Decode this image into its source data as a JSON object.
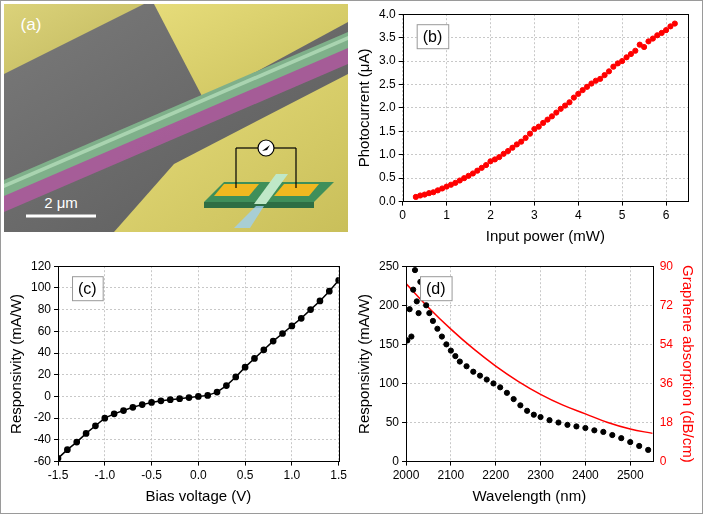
{
  "panel_a": {
    "label": "(a)",
    "scale_bar": "2 μm"
  },
  "chart_data": [
    {
      "type": "scatter",
      "annotation": "(b)",
      "x_label": "Input power (mW)",
      "y_label": "Photocurrent (μA)",
      "color": "#ff0000",
      "marker": "circle",
      "x": [
        0.3,
        0.4,
        0.5,
        0.6,
        0.7,
        0.8,
        0.9,
        1.0,
        1.1,
        1.2,
        1.3,
        1.4,
        1.5,
        1.6,
        1.7,
        1.8,
        1.9,
        2.0,
        2.1,
        2.2,
        2.3,
        2.4,
        2.5,
        2.6,
        2.7,
        2.8,
        2.9,
        3.0,
        3.1,
        3.2,
        3.3,
        3.4,
        3.5,
        3.6,
        3.7,
        3.8,
        3.9,
        4.0,
        4.1,
        4.2,
        4.3,
        4.4,
        4.5,
        4.6,
        4.7,
        4.8,
        4.9,
        5.0,
        5.1,
        5.2,
        5.3,
        5.4,
        5.5,
        5.6,
        5.7,
        5.8,
        5.9,
        6.0,
        6.1,
        6.2
      ],
      "values": [
        0.1,
        0.13,
        0.15,
        0.18,
        0.2,
        0.24,
        0.28,
        0.32,
        0.36,
        0.4,
        0.45,
        0.5,
        0.55,
        0.6,
        0.66,
        0.72,
        0.78,
        0.86,
        0.9,
        0.95,
        1.02,
        1.08,
        1.15,
        1.22,
        1.28,
        1.36,
        1.45,
        1.55,
        1.6,
        1.68,
        1.75,
        1.82,
        1.9,
        1.98,
        2.05,
        2.12,
        2.22,
        2.3,
        2.38,
        2.45,
        2.52,
        2.58,
        2.62,
        2.7,
        2.78,
        2.88,
        2.95,
        3.0,
        3.08,
        3.15,
        3.22,
        3.35,
        3.3,
        3.42,
        3.48,
        3.55,
        3.6,
        3.66,
        3.74,
        3.8
      ],
      "xlim": [
        0,
        6.5
      ],
      "xticks": [
        0,
        1,
        2,
        3,
        4,
        5,
        6
      ],
      "ylim": [
        0,
        4
      ],
      "yticks": [
        {
          "value": 0,
          "label": "0.0"
        },
        0.5,
        {
          "value": 1,
          "label": "1.0"
        },
        1.5,
        {
          "value": 2,
          "label": "2.0"
        },
        2.5,
        {
          "value": 3,
          "label": "3.0"
        },
        3.5,
        {
          "value": 4,
          "label": "4.0"
        }
      ],
      "grid": true
    },
    {
      "type": "line",
      "annotation": "(c)",
      "x_label": "Bias voltage (V)",
      "y_label": "Responsivity (mA/W)",
      "color": "#000000",
      "marker": "circle",
      "line_style": "solid",
      "x": [
        -1.5,
        -1.4,
        -1.3,
        -1.2,
        -1.1,
        -1.0,
        -0.9,
        -0.8,
        -0.7,
        -0.6,
        -0.5,
        -0.4,
        -0.3,
        -0.2,
        -0.1,
        0.0,
        0.1,
        0.2,
        0.3,
        0.4,
        0.5,
        0.6,
        0.7,
        0.8,
        0.9,
        1.0,
        1.1,
        1.2,
        1.3,
        1.4,
        1.5
      ],
      "values": [
        -57,
        -49,
        -42,
        -34,
        -27,
        -20,
        -16,
        -13,
        -10,
        -7.5,
        -5.5,
        -4,
        -3,
        -2,
        -1,
        0,
        1,
        4,
        10,
        18,
        27,
        35,
        43,
        51,
        58,
        65,
        72,
        80,
        88,
        97,
        107
      ],
      "xlim": [
        -1.5,
        1.5
      ],
      "xticks": [
        -1.5,
        {
          "value": -1,
          "label": "-1.0"
        },
        -0.5,
        {
          "value": 0,
          "label": "0.0"
        },
        0.5,
        {
          "value": 1,
          "label": "1.0"
        },
        1.5
      ],
      "ylim": [
        -60,
        120
      ],
      "yticks": [
        -60,
        -40,
        -20,
        0,
        20,
        40,
        60,
        80,
        100,
        120
      ],
      "grid": true
    },
    {
      "type": "scatter",
      "annotation": "(d)",
      "x_label": "Wavelength (nm)",
      "y_label": "Responsivity (mA/W)",
      "y2_label": "Graphene absorption (dB/cm)",
      "series": [
        {
          "type": "scatter",
          "color": "#000000",
          "marker": "circle",
          "x": [
            2003,
            2008,
            2012,
            2016,
            2020,
            2024,
            2028,
            2032,
            2038,
            2045,
            2052,
            2060,
            2070,
            2080,
            2090,
            2100,
            2110,
            2120,
            2135,
            2150,
            2165,
            2180,
            2195,
            2210,
            2225,
            2240,
            2255,
            2270,
            2285,
            2300,
            2320,
            2340,
            2360,
            2380,
            2400,
            2420,
            2440,
            2460,
            2480,
            2500,
            2520,
            2540
          ],
          "values": [
            155,
            195,
            160,
            220,
            245,
            205,
            190,
            230,
            210,
            200,
            190,
            180,
            170,
            160,
            150,
            142,
            135,
            128,
            122,
            115,
            110,
            105,
            100,
            95,
            88,
            80,
            72,
            65,
            60,
            57,
            53,
            50,
            47,
            45,
            43,
            40,
            38,
            34,
            30,
            25,
            20,
            15
          ]
        },
        {
          "type": "line",
          "axis": "y2",
          "color": "#ff0000",
          "marker": "none",
          "line_style": "solid",
          "x": [
            2000,
            2050,
            2100,
            2150,
            2200,
            2250,
            2300,
            2350,
            2400,
            2450,
            2500,
            2550
          ],
          "values": [
            82,
            71,
            61,
            52,
            44,
            37,
            31,
            26,
            22,
            18,
            15,
            13
          ]
        }
      ],
      "xlim": [
        2000,
        2550
      ],
      "xticks": [
        2000,
        2100,
        2200,
        2300,
        2400,
        2500
      ],
      "ylim": [
        0,
        250
      ],
      "yticks": [
        0,
        50,
        100,
        150,
        200,
        250
      ],
      "y2lim": [
        0,
        90
      ],
      "y2ticks": [
        0,
        18,
        36,
        54,
        72,
        90
      ],
      "grid": true
    }
  ]
}
